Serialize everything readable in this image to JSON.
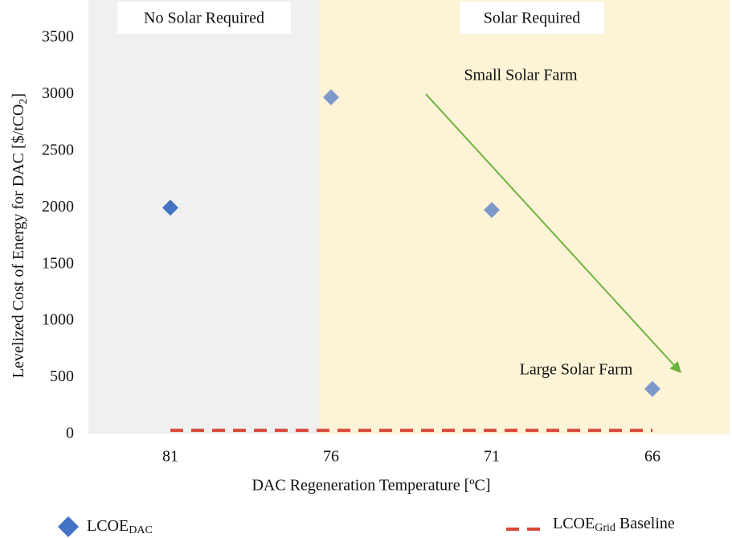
{
  "chart_data": {
    "type": "scatter",
    "y_label": [
      "Levelized Cost of Energy for DAC [$/tCO",
      "2",
      "]"
    ],
    "x_label": "DAC Regeneration Temperature [ºC]",
    "categories": [
      "81",
      "76",
      "71",
      "66"
    ],
    "series": [
      {
        "name": [
          "LCOE",
          "DAC"
        ],
        "color": "#4472c4",
        "marker": "diamond",
        "values": [
          2000,
          2975,
          1980,
          400
        ]
      },
      {
        "name": [
          "LCOE",
          "Grid",
          " Baseline"
        ],
        "color": "#d9483b",
        "marker": "dashed-line",
        "values": [
          35,
          35,
          35,
          35
        ]
      }
    ],
    "regions": [
      {
        "label": "No Solar Required",
        "color": "#f0f0f0"
      },
      {
        "label": "Solar Required",
        "color": "#fdf3d6"
      }
    ],
    "annotations": [
      "Small Solar Farm",
      "Large Solar Farm"
    ],
    "ylim": [
      0,
      3500
    ],
    "yticks": [
      0,
      500,
      1000,
      1500,
      2000,
      2500,
      3000,
      3500
    ],
    "grid": false
  }
}
